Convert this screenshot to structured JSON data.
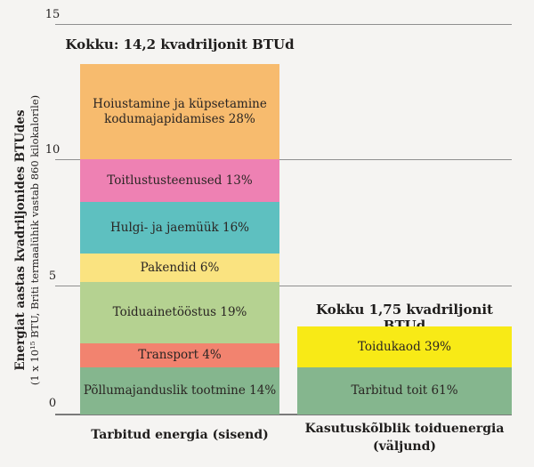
{
  "chart_data": {
    "type": "bar",
    "subtype": "stacked-percentage-columns",
    "background_color": "#f5f4f2",
    "grid": {
      "horizontal_lines_at": [
        0,
        5,
        10,
        15
      ],
      "color": "#8f8f8f"
    },
    "y_axis": {
      "label_line1": "Energiat aastas kvadriljonides BTUdes",
      "label_line2": "(1 x 10¹⁵ BTU, Briti termaalühik vastab 860 kilokalorile)",
      "ylim": [
        0,
        15
      ],
      "tick_labels": [
        "15",
        "10",
        "5",
        "0"
      ]
    },
    "bars": [
      {
        "axis_label": "Tarbitud energia (sisend)",
        "total_label": "Kokku: 14,2 kvadriljonit BTUd",
        "total_value_quadrillion_btu": 14.2,
        "segments": [
          {
            "label": "Hoiustamine ja küpsetamine kodumajapidamises",
            "percent": 28,
            "text": "Hoiustamine ja küpsetamine kodumajapidamises 28%",
            "color": "#f7bb6e"
          },
          {
            "label": "Toitlustusteenused",
            "percent": 13,
            "text": "Toitlustusteenused 13%",
            "color": "#ee81b3"
          },
          {
            "label": "Hulgi- ja jaemüük",
            "percent": 16,
            "text": "Hulgi- ja jaemüük 16%",
            "color": "#5ec0c0"
          },
          {
            "label": "Pakendid",
            "percent": 6,
            "text": "Pakendid 6%",
            "color": "#fae380"
          },
          {
            "label": "Toiduainetööstus",
            "percent": 19,
            "text": "Toiduainetööstus 19%",
            "color": "#b5d291"
          },
          {
            "label": "Transport",
            "percent": 4,
            "text": "Transport 4%",
            "color": "#f2836f"
          },
          {
            "label": "Põllumajanduslik tootmine",
            "percent": 14,
            "text": "Põllumajanduslik tootmine 14%",
            "color": "#85b68e"
          }
        ]
      },
      {
        "axis_label": "Kasutuskõlblik toiduenergia (väljund)",
        "total_label": "Kokku 1,75 kvadriljonit BTUd",
        "total_value_quadrillion_btu": 1.75,
        "segments": [
          {
            "label": "Toidukaod",
            "percent": 39,
            "text": "Toidukaod 39%",
            "color": "#f8ea16"
          },
          {
            "label": "Tarbitud toit",
            "percent": 61,
            "text": "Tarbitud toit 61%",
            "color": "#85b68e"
          }
        ]
      }
    ]
  }
}
